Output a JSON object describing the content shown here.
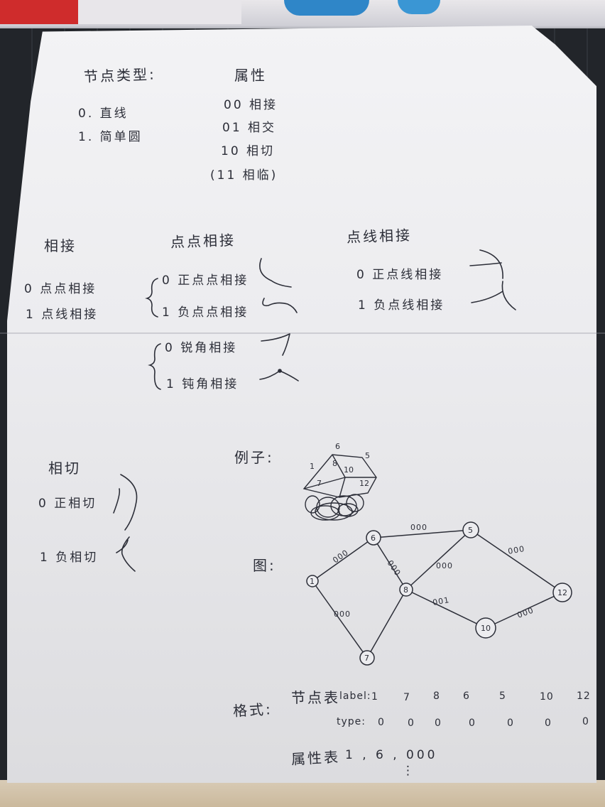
{
  "node_types": {
    "heading": "节点类型:",
    "items": [
      "0. 直线",
      "1. 简单圆"
    ]
  },
  "attributes": {
    "heading": "属性",
    "items": [
      "00  相接",
      "01  相交",
      "10  相切",
      "(11  相临)"
    ]
  },
  "tangent_connect": {
    "heading": "相接",
    "items": [
      "0 点点相接",
      "1 点线相接"
    ]
  },
  "point_point": {
    "heading": "点点相接",
    "items": [
      "0 正点点相接",
      "1 负点点相接",
      "0 锐角相接",
      "1 钝角相接"
    ]
  },
  "point_line": {
    "heading": "点线相接",
    "items": [
      "0 正点线相接",
      "1 负点线相接"
    ]
  },
  "tangent": {
    "heading": "相切",
    "items": [
      "0 正相切",
      "1 负相切"
    ]
  },
  "example": {
    "label": "例子:",
    "sketch_numbers": [
      "6",
      "5",
      "1",
      "8",
      "10",
      "7",
      "12"
    ]
  },
  "graph": {
    "label": "图:",
    "nodes": [
      "1",
      "6",
      "7",
      "8",
      "5",
      "10",
      "12"
    ],
    "edges": [
      {
        "from": "1",
        "to": "6",
        "attr": "000"
      },
      {
        "from": "1",
        "to": "7",
        "attr": "000"
      },
      {
        "from": "6",
        "to": "5",
        "attr": "000"
      },
      {
        "from": "6",
        "to": "8",
        "attr": "000"
      },
      {
        "from": "8",
        "to": "5",
        "attr": "000"
      },
      {
        "from": "8",
        "to": "10",
        "attr": "001"
      },
      {
        "from": "5",
        "to": "12",
        "attr": "000"
      },
      {
        "from": "10",
        "to": "12",
        "attr": "000"
      },
      {
        "from": "8",
        "to": "7",
        "attr": ""
      }
    ]
  },
  "format": {
    "label": "格式:",
    "node_table_label": "节点表",
    "label_row_title": "label:",
    "labels": [
      "1",
      "7",
      "8",
      "6",
      "5",
      "10",
      "12"
    ],
    "type_row_title": "type:",
    "types": [
      "0",
      "0",
      "0",
      "0",
      "0",
      "0",
      "0"
    ],
    "attr_table_label": "属性表",
    "attr_row": "1 , 6 , 000",
    "ellipsis": "⋮"
  },
  "colors": {
    "ink": "#2c2e38",
    "paper": "#ececef"
  }
}
